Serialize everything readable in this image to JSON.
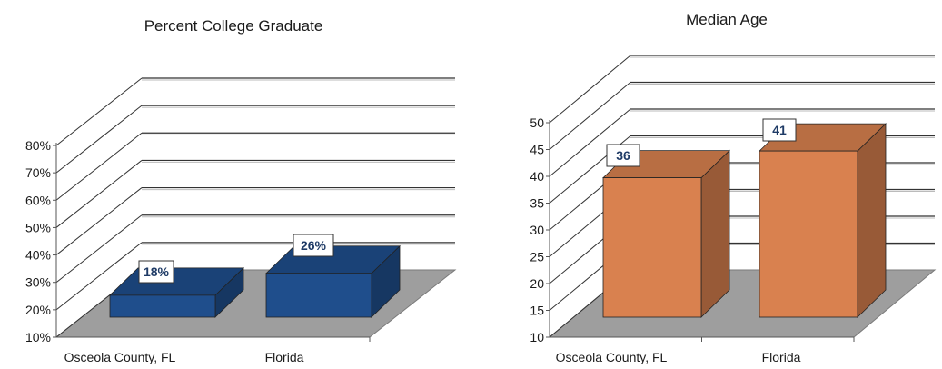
{
  "chart_data": [
    {
      "type": "bar",
      "title": "Percent College Graduate",
      "categories": [
        "Osceola County, FL",
        "Florida"
      ],
      "values": [
        18,
        26
      ],
      "data_labels": [
        "18%",
        "26%"
      ],
      "tick_labels": [
        "10%",
        "20%",
        "30%",
        "40%",
        "50%",
        "60%",
        "70%",
        "80%"
      ],
      "ylim": [
        10,
        80
      ],
      "bar_color": "#1f4e8c",
      "grid": true,
      "three_d": true
    },
    {
      "type": "bar",
      "title": "Median Age",
      "categories": [
        "Osceola County, FL",
        "Florida"
      ],
      "values": [
        36,
        41
      ],
      "data_labels": [
        "36",
        "41"
      ],
      "tick_labels": [
        "10",
        "15",
        "20",
        "25",
        "30",
        "35",
        "40",
        "45",
        "50"
      ],
      "ylim": [
        10,
        50
      ],
      "bar_color": "#d9814f",
      "grid": true,
      "three_d": true
    }
  ]
}
